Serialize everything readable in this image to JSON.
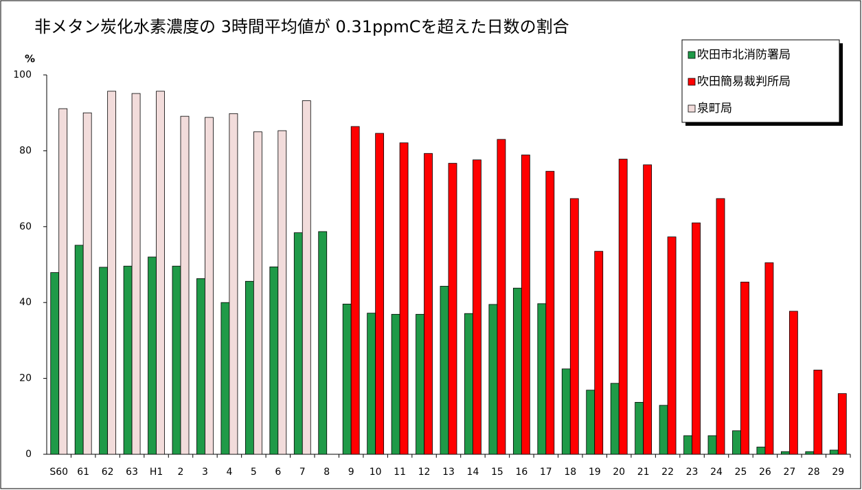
{
  "chart_data": {
    "type": "bar",
    "title": "非メタン炭化水素濃度の 3時間平均値が 0.31ppmCを超えた日数の割合",
    "ylabel": "%",
    "categories": [
      "S60",
      "61",
      "62",
      "63",
      "H1",
      "2",
      "3",
      "4",
      "5",
      "6",
      "7",
      "8",
      "9",
      "10",
      "11",
      "12",
      "13",
      "14",
      "15",
      "16",
      "17",
      "18",
      "19",
      "20",
      "21",
      "22",
      "23",
      "24",
      "25",
      "26",
      "27",
      "28",
      "29"
    ],
    "series": [
      {
        "name": "吹田市北消防署局",
        "color": "#1f9a48",
        "values": [
          47.9,
          55.1,
          49.3,
          49.6,
          52,
          49.6,
          46.3,
          40,
          45.6,
          49.4,
          58.4,
          58.7,
          39.6,
          37.2,
          36.9,
          36.9,
          44.3,
          37.1,
          39.5,
          43.8,
          39.7,
          22.5,
          16.9,
          18.7,
          13.7,
          12.9,
          4.9,
          4.9,
          6.2,
          1.9,
          0.7,
          0.7,
          1.1
        ]
      },
      {
        "name": "吹田簡易裁判所局",
        "color": "#ff0000",
        "values": [
          null,
          null,
          null,
          null,
          null,
          null,
          null,
          null,
          null,
          null,
          null,
          null,
          86.4,
          84.6,
          82.1,
          79.3,
          76.7,
          77.6,
          83,
          78.9,
          74.6,
          67.4,
          53.5,
          77.8,
          76.3,
          57.3,
          61,
          67.4,
          45.4,
          50.5,
          37.7,
          22.2,
          16
        ]
      },
      {
        "name": "泉町局",
        "color": "#f2dcdb",
        "values": [
          91.1,
          90,
          95.7,
          95.1,
          95.7,
          89.1,
          88.8,
          89.8,
          85,
          85.3,
          93.2,
          null,
          null,
          null,
          null,
          null,
          null,
          null,
          null,
          null,
          null,
          null,
          null,
          null,
          null,
          null,
          null,
          null,
          null,
          null,
          null,
          null,
          null
        ]
      }
    ],
    "ylim": [
      0,
      100
    ],
    "yticks": [
      0,
      20,
      40,
      60,
      80,
      100
    ],
    "legend": "top-right"
  }
}
